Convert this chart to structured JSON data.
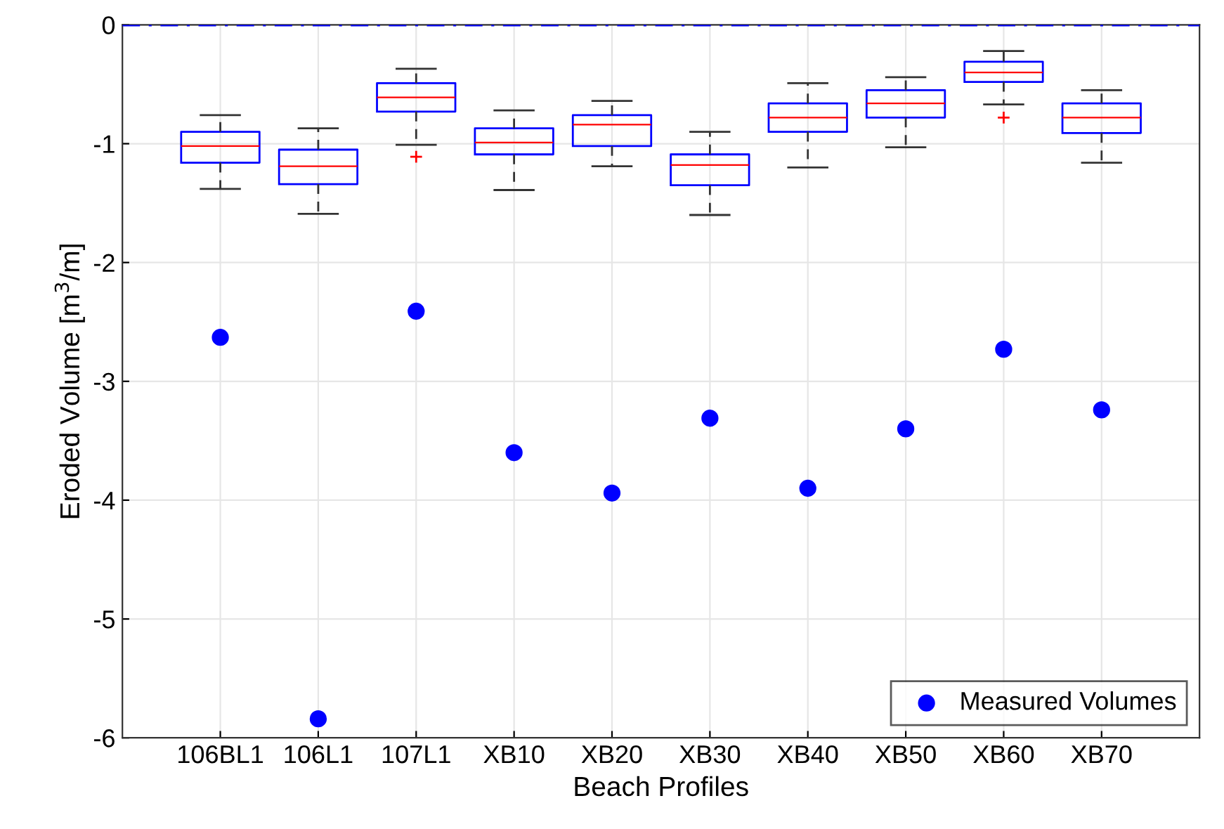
{
  "chart_data": {
    "type": "box",
    "xlabel": "Beach Profiles",
    "ylabel": "Eroded Volume [m$^{3}$/m]",
    "categories": [
      "106BL1",
      "106L1",
      "107L1",
      "XB10",
      "XB20",
      "XB30",
      "XB40",
      "XB50",
      "XB60",
      "XB70"
    ],
    "ylim": [
      -6,
      0
    ],
    "yticks": [
      -6,
      -5,
      -4,
      -3,
      -2,
      -1,
      0
    ],
    "grid": true,
    "legend": "bottom right",
    "ref_lines": [
      {
        "axis": "y",
        "value": 0,
        "color": "#0000ff",
        "line_style": "dashed"
      }
    ],
    "series": [
      {
        "color": "#0000ff",
        "boxes": [
          {
            "low": -1.38,
            "q1": -1.16,
            "median": -1.02,
            "q3": -0.9,
            "high": -0.76
          },
          {
            "low": -1.59,
            "q1": -1.34,
            "median": -1.19,
            "q3": -1.05,
            "high": -0.87
          },
          {
            "low": -1.01,
            "q1": -0.73,
            "median": -0.61,
            "q3": -0.49,
            "high": -0.37,
            "outliers": [
              -1.11
            ]
          },
          {
            "low": -1.39,
            "q1": -1.09,
            "median": -0.99,
            "q3": -0.87,
            "high": -0.72
          },
          {
            "low": -1.19,
            "q1": -1.02,
            "median": -0.84,
            "q3": -0.76,
            "high": -0.64
          },
          {
            "low": -1.6,
            "q1": -1.35,
            "median": -1.18,
            "q3": -1.09,
            "high": -0.9
          },
          {
            "low": -1.2,
            "q1": -0.9,
            "median": -0.78,
            "q3": -0.66,
            "high": -0.49
          },
          {
            "low": -1.03,
            "q1": -0.78,
            "median": -0.66,
            "q3": -0.55,
            "high": -0.44
          },
          {
            "low": -0.67,
            "q1": -0.48,
            "median": -0.4,
            "q3": -0.31,
            "high": -0.22,
            "outliers": [
              -0.78
            ]
          },
          {
            "low": -1.16,
            "q1": -0.91,
            "median": -0.78,
            "q3": -0.66,
            "high": -0.55
          }
        ]
      },
      {
        "type": "scatter",
        "name": "Measured Volumes",
        "color": "#0000ff",
        "marker": "circle",
        "x": [
          "106BL1",
          "106L1",
          "107L1",
          "XB10",
          "XB20",
          "XB30",
          "XB40",
          "XB50",
          "XB60",
          "XB70"
        ],
        "values": [
          -2.63,
          -5.84,
          -2.41,
          -3.6,
          -3.94,
          -3.31,
          -3.9,
          -3.4,
          -2.73,
          -3.24
        ]
      }
    ]
  }
}
